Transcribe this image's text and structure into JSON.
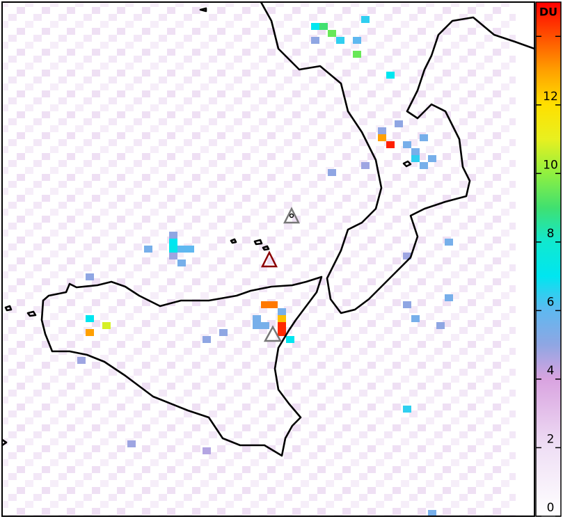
{
  "map": {
    "colorbar": {
      "label": "DU",
      "lim": [
        0,
        15
      ],
      "ticks": [
        0,
        2,
        4,
        6,
        8,
        10,
        12,
        {
          "value": 14,
          "label": null
        }
      ],
      "colorscale": [
        [
          0,
          "#ffffff"
        ],
        [
          2,
          "#efdff5"
        ],
        [
          4,
          "#d9a3e0"
        ],
        [
          5,
          "#8fa6e3"
        ],
        [
          6,
          "#5fb8f0"
        ],
        [
          7,
          "#00e6f0"
        ],
        [
          8,
          "#10e8d0"
        ],
        [
          9,
          "#40e070"
        ],
        [
          10,
          "#90f040"
        ],
        [
          11,
          "#e8f020"
        ],
        [
          12,
          "#ffe000"
        ],
        [
          13,
          "#ffa000"
        ],
        [
          14,
          "#ff5000"
        ],
        [
          15,
          "#ff0000"
        ]
      ]
    },
    "pixels": [
      {
        "col": 33,
        "row": 46,
        "value": 14.5
      },
      {
        "col": 33,
        "row": 47,
        "value": 14.5
      },
      {
        "col": 31,
        "row": 43,
        "value": 13.5
      },
      {
        "col": 32,
        "row": 43,
        "value": 13.5
      },
      {
        "col": 33,
        "row": 45,
        "value": 12.5
      },
      {
        "col": 33,
        "row": 44,
        "value": 5.5
      },
      {
        "col": 34,
        "row": 48,
        "value": 7
      },
      {
        "col": 30,
        "row": 46,
        "value": 5.5
      },
      {
        "col": 31,
        "row": 46,
        "value": 5.5
      },
      {
        "col": 26,
        "row": 47,
        "value": 5
      },
      {
        "col": 24,
        "row": 48,
        "value": 5
      },
      {
        "col": 30,
        "row": 45,
        "value": 5.5
      },
      {
        "col": 10,
        "row": 45,
        "value": 7
      },
      {
        "col": 12,
        "row": 46,
        "value": 10.8
      },
      {
        "col": 10,
        "row": 47,
        "value": 13
      },
      {
        "col": 20,
        "row": 34,
        "value": 7
      },
      {
        "col": 20,
        "row": 35,
        "value": 7.2
      },
      {
        "col": 21,
        "row": 35,
        "value": 6
      },
      {
        "col": 22,
        "row": 35,
        "value": 6
      },
      {
        "col": 17,
        "row": 35,
        "value": 5.5
      },
      {
        "col": 20,
        "row": 33,
        "value": 5
      },
      {
        "col": 21,
        "row": 37,
        "value": 5.5
      },
      {
        "col": 20,
        "row": 36,
        "value": 4.8
      },
      {
        "col": 37,
        "row": 3,
        "value": 7
      },
      {
        "col": 38,
        "row": 3,
        "value": 9
      },
      {
        "col": 39,
        "row": 4,
        "value": 9.5
      },
      {
        "col": 40,
        "row": 5,
        "value": 6.5
      },
      {
        "col": 42,
        "row": 5,
        "value": 6
      },
      {
        "col": 42,
        "row": 7,
        "value": 9.5
      },
      {
        "col": 46,
        "row": 10,
        "value": 7
      },
      {
        "col": 43,
        "row": 2,
        "value": 6.5
      },
      {
        "col": 37,
        "row": 5,
        "value": 5
      },
      {
        "col": 45,
        "row": 19,
        "value": 13
      },
      {
        "col": 46,
        "row": 20,
        "value": 14.6
      },
      {
        "col": 45,
        "row": 18,
        "value": 5
      },
      {
        "col": 48,
        "row": 20,
        "value": 5.5
      },
      {
        "col": 50,
        "row": 19,
        "value": 5.5
      },
      {
        "col": 49,
        "row": 21,
        "value": 5.5
      },
      {
        "col": 51,
        "row": 22,
        "value": 5.5
      },
      {
        "col": 49,
        "row": 22,
        "value": 6.5
      },
      {
        "col": 50,
        "row": 23,
        "value": 5.5
      },
      {
        "col": 39,
        "row": 24,
        "value": 5
      },
      {
        "col": 43,
        "row": 23,
        "value": 4.8
      },
      {
        "col": 47,
        "row": 17,
        "value": 5
      },
      {
        "col": 48,
        "row": 58,
        "value": 6.5
      },
      {
        "col": 53,
        "row": 34,
        "value": 5.5
      },
      {
        "col": 49,
        "row": 45,
        "value": 5.5
      },
      {
        "col": 51,
        "row": 73,
        "value": 5.5
      },
      {
        "col": 53,
        "row": 42,
        "value": 5.5
      },
      {
        "col": 48,
        "row": 43,
        "value": 5
      },
      {
        "col": 52,
        "row": 46,
        "value": 5
      },
      {
        "col": 48,
        "row": 36,
        "value": 4.8
      },
      {
        "col": 15,
        "row": 63,
        "value": 4.8
      },
      {
        "col": 10,
        "row": 39,
        "value": 5
      },
      {
        "col": 9,
        "row": 51,
        "value": 4.8
      },
      {
        "col": 24,
        "row": 64,
        "value": 4.5
      }
    ]
  }
}
